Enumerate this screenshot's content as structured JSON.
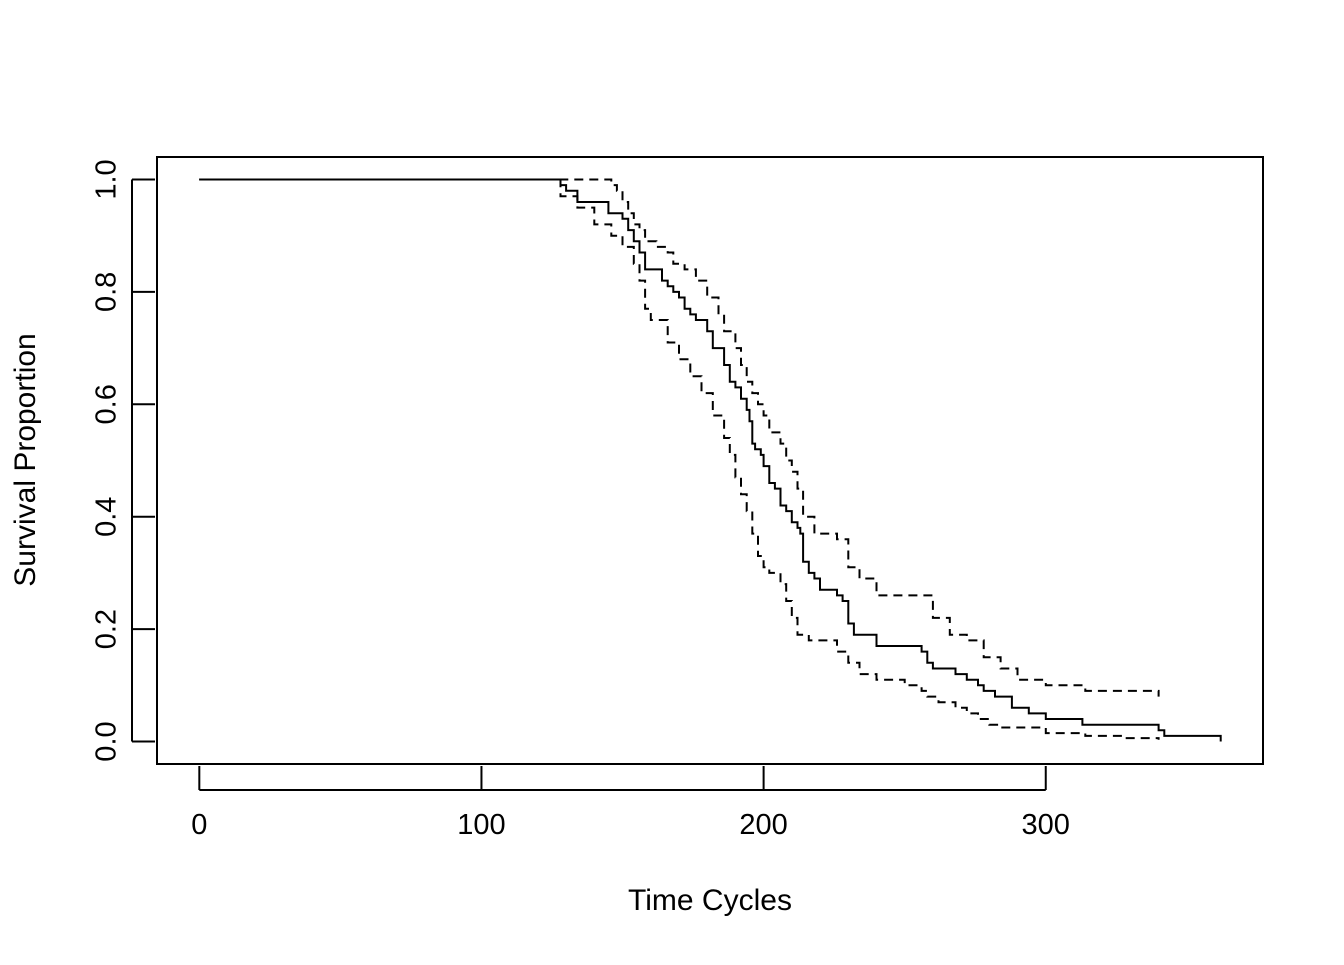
{
  "chart_data": {
    "type": "line",
    "title": "",
    "xlabel": "Time Cycles",
    "ylabel": "Survival Proportion",
    "xlim": [
      -15,
      377
    ],
    "ylim": [
      -0.04,
      1.04
    ],
    "x_ticks": [
      0,
      100,
      200,
      300
    ],
    "x_tick_labels": [
      "0",
      "100",
      "200",
      "300"
    ],
    "y_ticks": [
      0.0,
      0.2,
      0.4,
      0.6,
      0.8,
      1.0
    ],
    "y_tick_labels": [
      "0.0",
      "0.2",
      "0.4",
      "0.6",
      "0.8",
      "1.0"
    ],
    "grid": false,
    "legend": "none",
    "colors": {
      "line": "#000000",
      "frame": "#000000",
      "background": "#ffffff"
    },
    "series": [
      {
        "style": "solid",
        "step": true,
        "x": [
          0,
          128,
          130,
          134,
          136,
          145,
          150,
          152,
          154,
          156,
          158,
          160,
          164,
          166,
          168,
          170,
          172,
          174,
          176,
          180,
          182,
          186,
          188,
          190,
          192,
          194,
          195,
          196,
          197,
          199,
          200,
          202,
          204,
          206,
          208,
          210,
          212,
          213,
          214,
          216,
          218,
          220,
          226,
          228,
          230,
          232,
          240,
          250,
          256,
          258,
          260,
          262,
          268,
          272,
          276,
          278,
          282,
          284,
          288,
          294,
          300,
          310,
          313,
          324,
          340,
          342,
          362
        ],
        "y": [
          1.0,
          0.99,
          0.98,
          0.96,
          0.96,
          0.94,
          0.93,
          0.91,
          0.89,
          0.87,
          0.84,
          0.84,
          0.82,
          0.81,
          0.8,
          0.79,
          0.77,
          0.76,
          0.75,
          0.73,
          0.7,
          0.67,
          0.64,
          0.63,
          0.61,
          0.59,
          0.57,
          0.53,
          0.52,
          0.51,
          0.49,
          0.46,
          0.45,
          0.42,
          0.41,
          0.39,
          0.38,
          0.37,
          0.32,
          0.3,
          0.29,
          0.27,
          0.26,
          0.25,
          0.21,
          0.19,
          0.17,
          0.17,
          0.16,
          0.14,
          0.13,
          0.13,
          0.12,
          0.11,
          0.1,
          0.09,
          0.08,
          0.08,
          0.06,
          0.05,
          0.04,
          0.04,
          0.03,
          0.03,
          0.02,
          0.01,
          0.0
        ]
      },
      {
        "style": "dashed",
        "step": true,
        "x": [
          0,
          134,
          146,
          148,
          150,
          152,
          154,
          156,
          158,
          162,
          166,
          168,
          172,
          176,
          180,
          184,
          186,
          190,
          192,
          194,
          196,
          198,
          200,
          202,
          206,
          208,
          210,
          212,
          214,
          218,
          220,
          226,
          230,
          234,
          240,
          256,
          260,
          266,
          272,
          278,
          284,
          290,
          300,
          314,
          340
        ],
        "y": [
          1.0,
          1.0,
          0.99,
          0.98,
          0.96,
          0.94,
          0.92,
          0.91,
          0.89,
          0.88,
          0.87,
          0.85,
          0.84,
          0.82,
          0.79,
          0.76,
          0.73,
          0.7,
          0.67,
          0.64,
          0.62,
          0.6,
          0.58,
          0.55,
          0.53,
          0.5,
          0.48,
          0.45,
          0.4,
          0.37,
          0.37,
          0.36,
          0.31,
          0.29,
          0.26,
          0.26,
          0.22,
          0.19,
          0.18,
          0.15,
          0.13,
          0.11,
          0.1,
          0.09,
          0.08
        ]
      },
      {
        "style": "dashed",
        "step": true,
        "x": [
          0,
          128,
          134,
          140,
          146,
          150,
          154,
          156,
          158,
          160,
          166,
          170,
          174,
          178,
          182,
          186,
          188,
          190,
          192,
          194,
          196,
          198,
          200,
          202,
          206,
          208,
          210,
          212,
          214,
          216,
          226,
          230,
          234,
          240,
          250,
          256,
          258,
          262,
          268,
          272,
          276,
          280,
          284,
          300,
          314,
          328,
          340
        ],
        "y": [
          1.0,
          0.97,
          0.95,
          0.92,
          0.9,
          0.88,
          0.85,
          0.82,
          0.77,
          0.75,
          0.71,
          0.68,
          0.65,
          0.62,
          0.58,
          0.54,
          0.51,
          0.47,
          0.44,
          0.41,
          0.37,
          0.33,
          0.31,
          0.3,
          0.28,
          0.25,
          0.22,
          0.19,
          0.19,
          0.18,
          0.16,
          0.14,
          0.12,
          0.11,
          0.1,
          0.09,
          0.08,
          0.07,
          0.06,
          0.05,
          0.04,
          0.03,
          0.025,
          0.015,
          0.01,
          0.006,
          0.003
        ]
      }
    ]
  }
}
